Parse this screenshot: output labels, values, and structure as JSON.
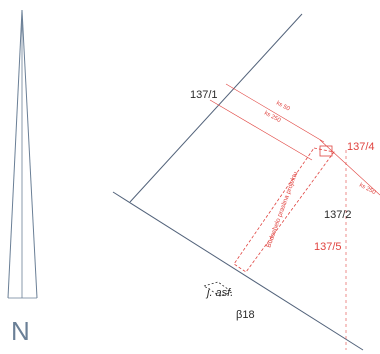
{
  "parcels": {
    "p137_1": "137/1",
    "p137_2": "137/2",
    "p137_4": "137/4",
    "p137_5": "137/5",
    "p818": "β18"
  },
  "dimensions": {
    "ks50": "ks 50",
    "ks250_upper": "ks 250",
    "ks250_right": "ks 250"
  },
  "road": {
    "label": "j. asf."
  },
  "overlay": {
    "label": "Budeshelo praslina projektu"
  },
  "north_arrow": {
    "letter": "N"
  },
  "colors": {
    "boundary": "#52627a",
    "red_line": "#e0433f",
    "north_arrow": "#6a7f96"
  }
}
